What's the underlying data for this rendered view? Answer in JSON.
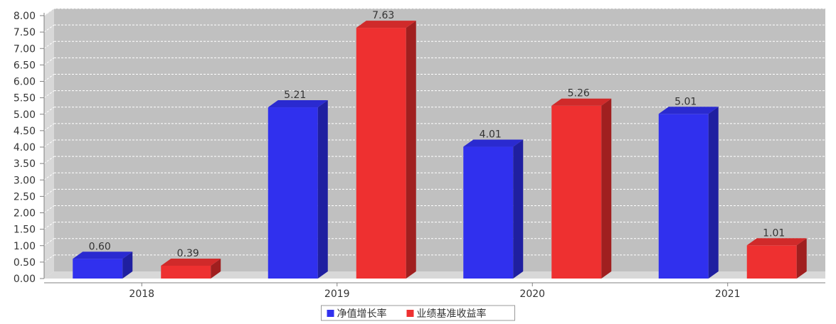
{
  "colors": {
    "background": "#ffffff",
    "plot_background": "#c0c0c0",
    "plot_wall_side": "#d8d8d8",
    "gridline": "#ffffff",
    "axis": "#808080",
    "text": "#333333"
  },
  "chart_data": {
    "type": "bar",
    "style": "3d-grouped",
    "categories": [
      "2018",
      "2019",
      "2020",
      "2021"
    ],
    "series": [
      {
        "name": "净值增长率",
        "color": "#3030ee",
        "side_color": "#1f1fa0",
        "top_color": "#2a2ad0",
        "values": [
          0.6,
          5.21,
          4.01,
          5.01
        ],
        "labels": [
          "0.60",
          "5.21",
          "4.01",
          "5.01"
        ]
      },
      {
        "name": "业绩基准收益率",
        "color": "#ee3030",
        "side_color": "#a01f1f",
        "top_color": "#d02a2a",
        "values": [
          0.39,
          7.63,
          5.26,
          1.01
        ],
        "labels": [
          "0.39",
          "7.63",
          "5.26",
          "1.01"
        ]
      }
    ],
    "ylim": [
      0,
      8
    ],
    "y_ticks": [
      "0.00",
      "0.50",
      "1.00",
      "1.50",
      "2.00",
      "2.50",
      "3.00",
      "3.50",
      "4.00",
      "4.50",
      "5.00",
      "5.50",
      "6.00",
      "6.50",
      "7.00",
      "7.50",
      "8.00"
    ],
    "grid": true,
    "legend_position": "bottom-center"
  }
}
